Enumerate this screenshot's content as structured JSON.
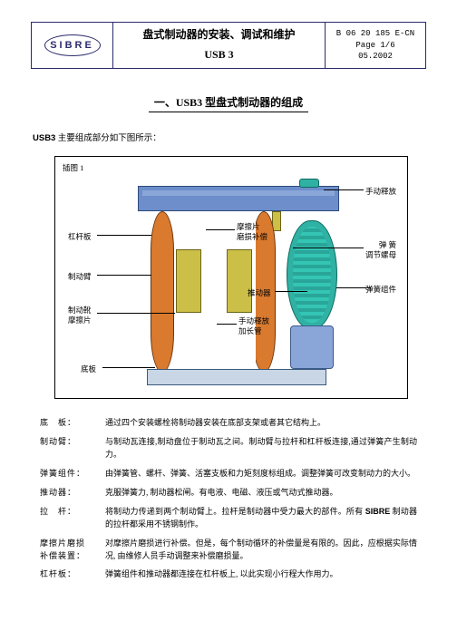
{
  "header": {
    "logo_text": "SIBRE",
    "title_line1": "盘式制动器的安装、调试和维护",
    "title_line2": "USB 3",
    "doc_no": "B 06 20 185 E-CN",
    "page": "Page  1/6",
    "date": "05.2002"
  },
  "section_heading": "一、USB3 型盘式制动器的组成",
  "intro_prefix": "USB3",
  "intro_body": " 主要组成部分如下图所示：",
  "figure_caption": "插图 1",
  "labels": {
    "lever_plate": "杠杆板",
    "brake_arm": "制动臂",
    "brake_shoe": "制动靴\n摩擦片",
    "base_plate": "底板",
    "pad_wear": "摩擦片\n磨损补偿",
    "actuator": "推动器",
    "manual_ext": "手动释放\n加长管",
    "manual_release": "手动释放",
    "spring_nut": "弹  簧\n调节螺母",
    "spring_unit": "弹簧组件"
  },
  "terms": [
    {
      "k": "底　板",
      "v": "通过四个安装螺栓将制动器安装在底部支架或者其它结构上。"
    },
    {
      "k": "制动臂",
      "v": "与制动瓦连接,制动盘位于制动瓦之间。制动臂与拉杆和杠杆板连接,通过弹簧产生制动力。"
    },
    {
      "k": "弹簧组件",
      "v": "由弹簧管、螺杆、弹簧、活塞支板和力矩刻度标组成。调整弹簧可改变制动力的大小。"
    },
    {
      "k": "推动器",
      "v": "克服弹簧力,  制动器松闸。有电液、电磁、液压或气动式推动器。"
    },
    {
      "k": "拉　杆",
      "v": "将制动力传递到两个制动臂上。拉杆是制动器中受力最大的部件。所有 <b>SIBRE</b> 制动器的拉杆都采用不锈钢制作。"
    },
    {
      "k": "摩擦片磨损<br>补偿装置",
      "v": "对摩擦片磨损进行补偿。但是，每个制动循环的补偿量是有限的。因此，应根据实际情况,  由维修人员手动调整来补偿磨损量。"
    },
    {
      "k": "杠杆板",
      "v": "弹簧组件和推动器都连接在杠杆板上,  以此实现小行程大作用力。"
    }
  ],
  "colors": {
    "frame": "#2b2b6c",
    "top_beam": "#6d8ecb",
    "arm": "#d97a2f",
    "pad": "#cbbf47",
    "actuator": "#2fb2a3",
    "base": "#c8d6e6"
  }
}
